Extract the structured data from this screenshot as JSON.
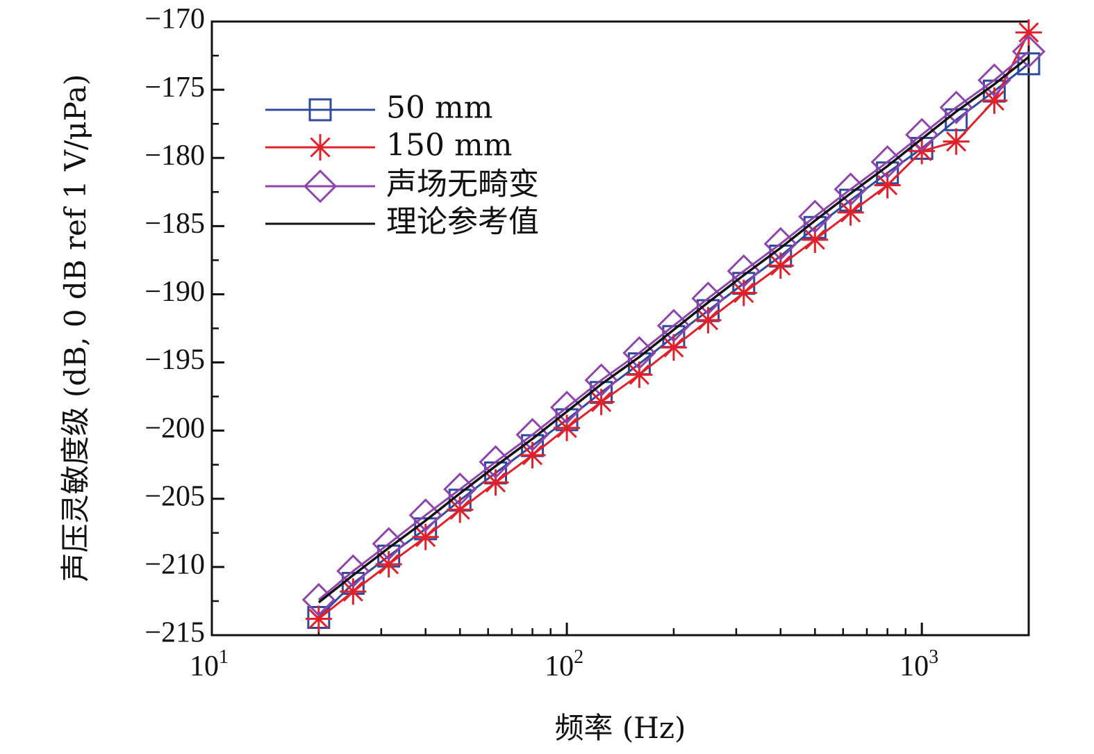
{
  "chart_data": {
    "type": "line",
    "title": "",
    "xlabel": "频率 (Hz)",
    "ylabel": "声压灵敏度级 (dB, 0 dB ref 1 V/μPa)",
    "xscale": "log",
    "xlim": [
      10,
      2000
    ],
    "ylim": [
      -215,
      -170
    ],
    "grid": false,
    "legend_position": "top-left",
    "x_ticks": [
      {
        "value": 10,
        "base": "10",
        "exp": "1"
      },
      {
        "value": 100,
        "base": "10",
        "exp": "2"
      },
      {
        "value": 1000,
        "base": "10",
        "exp": "3"
      }
    ],
    "y_ticks": [
      {
        "value": -170,
        "label": "−170"
      },
      {
        "value": -175,
        "label": "−175"
      },
      {
        "value": -180,
        "label": "−180"
      },
      {
        "value": -185,
        "label": "−185"
      },
      {
        "value": -190,
        "label": "−190"
      },
      {
        "value": -195,
        "label": "−195"
      },
      {
        "value": -200,
        "label": "−200"
      },
      {
        "value": -205,
        "label": "−205"
      },
      {
        "value": -210,
        "label": "−210"
      },
      {
        "value": -215,
        "label": "−215"
      }
    ],
    "x": [
      20,
      25,
      31.5,
      40,
      50,
      63,
      80,
      100,
      125,
      160,
      200,
      250,
      315,
      400,
      500,
      630,
      800,
      1000,
      1250,
      1600,
      2000
    ],
    "series": [
      {
        "name": "50 mm",
        "color": "#2e4a9e",
        "marker": "square",
        "values": [
          -213.7,
          -211.2,
          -209.2,
          -207.2,
          -205.1,
          -203.1,
          -201.1,
          -199.2,
          -197.2,
          -195.1,
          -193.1,
          -191.2,
          -189.2,
          -187.2,
          -185.1,
          -183.1,
          -181.1,
          -179.3,
          -177.2,
          -175.1,
          -173.1
        ]
      },
      {
        "name": "150 mm",
        "color": "#e0202a",
        "marker": "asterisk",
        "values": [
          -213.8,
          -211.8,
          -209.8,
          -207.8,
          -205.8,
          -203.8,
          -201.8,
          -199.8,
          -197.9,
          -195.9,
          -193.9,
          -191.9,
          -189.9,
          -187.9,
          -186.0,
          -184.0,
          -182.0,
          -179.5,
          -178.8,
          -175.8,
          -170.8
        ]
      },
      {
        "name": "声场无畸变",
        "color": "#8e44ad",
        "marker": "diamond",
        "values": [
          -212.4,
          -210.3,
          -208.3,
          -206.2,
          -204.3,
          -202.3,
          -200.3,
          -198.3,
          -196.3,
          -194.3,
          -192.3,
          -190.3,
          -188.3,
          -186.3,
          -184.3,
          -182.3,
          -180.3,
          -178.3,
          -176.3,
          -174.3,
          -172.2
        ]
      },
      {
        "name": "理论参考值",
        "color": "#111111",
        "marker": "none",
        "values": [
          -212.6,
          -210.6,
          -208.6,
          -206.6,
          -204.6,
          -202.6,
          -200.6,
          -198.6,
          -196.6,
          -194.6,
          -192.6,
          -190.6,
          -188.6,
          -186.6,
          -184.6,
          -182.6,
          -180.6,
          -178.6,
          -176.6,
          -174.6,
          -172.6
        ]
      }
    ]
  }
}
